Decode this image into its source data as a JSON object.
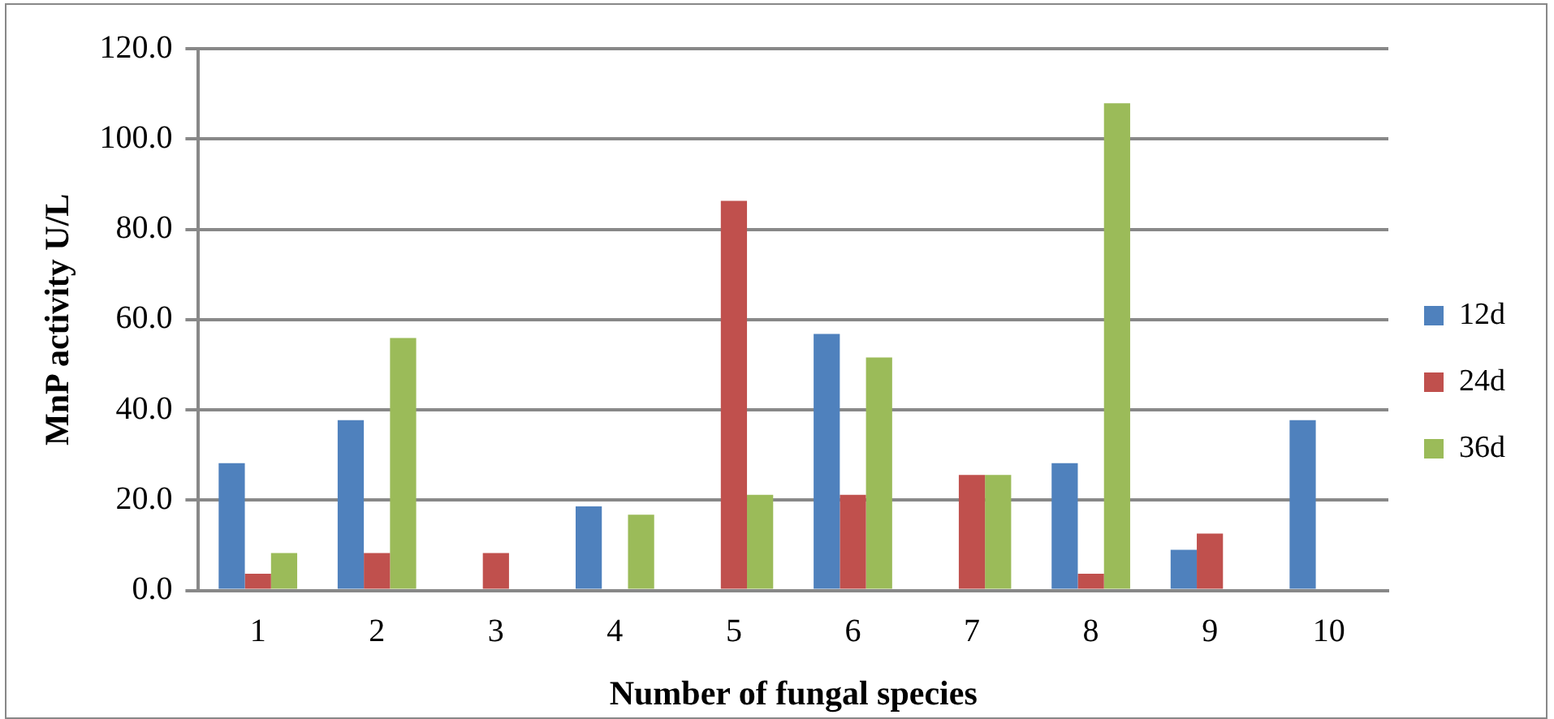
{
  "chart_data": {
    "type": "bar",
    "xlabel": "Number of fungal species",
    "ylabel": "MnP activity U/L",
    "categories": [
      "1",
      "2",
      "3",
      "4",
      "5",
      "6",
      "7",
      "8",
      "9",
      "10"
    ],
    "series": [
      {
        "name": "12d",
        "color": "#4f81bd",
        "values": [
          28.2,
          37.7,
          0,
          18.6,
          0,
          56.8,
          0,
          28.2,
          9.0,
          37.7
        ]
      },
      {
        "name": "24d",
        "color": "#c0504d",
        "values": [
          3.7,
          8.3,
          8.3,
          0,
          86.3,
          21.2,
          25.6,
          3.7,
          12.6,
          0
        ]
      },
      {
        "name": "36d",
        "color": "#9bbb59",
        "values": [
          8.3,
          55.9,
          0,
          16.8,
          21.2,
          51.6,
          25.6,
          107.9,
          0,
          0
        ]
      }
    ],
    "ylim": [
      0,
      120
    ],
    "yticks": [
      {
        "value": 0,
        "label": "0.0"
      },
      {
        "value": 20,
        "label": "20.0"
      },
      {
        "value": 40,
        "label": "40.0"
      },
      {
        "value": 60,
        "label": "60.0"
      },
      {
        "value": 80,
        "label": "80.0"
      },
      {
        "value": 100,
        "label": "100.0"
      },
      {
        "value": 120,
        "label": "120.0"
      }
    ],
    "grid": "y",
    "legend": "right"
  }
}
